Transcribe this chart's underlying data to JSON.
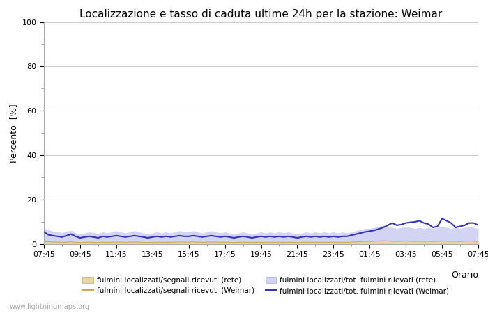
{
  "title": "Localizzazione e tasso di caduta ultime 24h per la stazione: Weimar",
  "ylabel": "Percento  [%]",
  "xlabel": "Orario",
  "ylim": [
    0,
    100
  ],
  "yticks_major": [
    0,
    20,
    40,
    60,
    80,
    100
  ],
  "yticks_minor": [
    10,
    30,
    50,
    70,
    90
  ],
  "x_labels": [
    "07:45",
    "09:45",
    "11:45",
    "13:45",
    "15:45",
    "17:45",
    "19:45",
    "21:45",
    "23:45",
    "01:45",
    "03:45",
    "05:45",
    "07:45"
  ],
  "n_points": 97,
  "background_color": "#ffffff",
  "plot_bg_color": "#ffffff",
  "grid_color": "#cccccc",
  "watermark": "www.lightningmaps.org",
  "fill_rete_color": "#e8d5a8",
  "fill_rete_alpha": 1.0,
  "fill_weimar_color": "#c8c8f0",
  "fill_weimar_alpha": 0.8,
  "line_rete_color": "#d4a840",
  "line_rete_lw": 0.8,
  "line_weimar_color": "#3333bb",
  "line_weimar_lw": 1.5,
  "legend_labels": [
    "fulmini localizzati/segnali ricevuti (rete)",
    "fulmini localizzati/segnali ricevuti (Weimar)",
    "fulmini localizzati/tot. fulmini rilevati (rete)",
    "fulmini localizzati/tot. fulmini rilevati (Weimar)"
  ],
  "rete_signals": [
    1.2,
    1.1,
    1.0,
    0.9,
    0.8,
    0.9,
    1.0,
    0.8,
    0.7,
    0.8,
    0.9,
    0.8,
    0.7,
    0.9,
    0.8,
    0.9,
    1.0,
    0.9,
    0.8,
    0.9,
    1.0,
    0.9,
    0.8,
    0.7,
    0.8,
    0.9,
    0.8,
    0.9,
    0.8,
    0.9,
    1.0,
    0.9,
    0.9,
    1.0,
    0.9,
    0.8,
    0.9,
    1.0,
    0.9,
    0.8,
    0.9,
    0.8,
    0.7,
    0.8,
    0.9,
    0.8,
    0.7,
    0.8,
    0.9,
    0.8,
    0.9,
    0.8,
    0.9,
    0.8,
    0.9,
    0.8,
    0.7,
    0.8,
    0.9,
    0.8,
    0.9,
    0.8,
    0.9,
    0.8,
    0.9,
    0.8,
    0.9,
    0.8,
    0.9,
    1.0,
    1.1,
    1.2,
    1.2,
    1.3,
    1.4,
    1.5,
    1.4,
    1.3,
    1.2,
    1.3,
    1.4,
    1.3,
    1.2,
    1.3,
    1.2,
    1.3,
    1.2,
    1.3,
    1.4,
    1.3,
    1.2,
    1.3,
    1.2,
    1.3,
    1.4,
    1.3,
    1.2
  ],
  "rete_total": [
    7.0,
    6.5,
    5.8,
    5.5,
    5.2,
    5.8,
    6.2,
    5.0,
    4.5,
    5.0,
    5.5,
    5.2,
    4.8,
    5.5,
    5.0,
    5.5,
    6.0,
    5.5,
    5.0,
    5.5,
    6.0,
    5.5,
    5.0,
    4.8,
    5.0,
    5.5,
    5.0,
    5.5,
    5.0,
    5.5,
    6.0,
    5.5,
    5.5,
    6.0,
    5.5,
    5.0,
    5.5,
    6.0,
    5.5,
    5.0,
    5.5,
    5.0,
    4.5,
    5.0,
    5.5,
    5.0,
    4.5,
    5.0,
    5.5,
    5.0,
    5.5,
    5.0,
    5.5,
    5.0,
    5.5,
    5.0,
    4.5,
    5.0,
    5.5,
    5.0,
    5.5,
    5.0,
    5.5,
    5.0,
    5.5,
    5.0,
    5.5,
    5.0,
    5.5,
    6.0,
    6.5,
    7.0,
    7.0,
    7.5,
    8.0,
    8.5,
    8.0,
    7.5,
    7.0,
    7.5,
    8.0,
    7.5,
    7.0,
    7.5,
    7.0,
    7.5,
    7.0,
    7.5,
    8.0,
    7.5,
    7.0,
    7.5,
    7.0,
    7.5,
    8.0,
    7.5,
    7.0
  ],
  "weimar_signals": [
    0.5,
    0.4,
    0.3,
    0.3,
    0.2,
    0.3,
    0.4,
    0.3,
    0.2,
    0.3,
    0.3,
    0.3,
    0.2,
    0.3,
    0.2,
    0.3,
    0.3,
    0.3,
    0.2,
    0.3,
    0.3,
    0.3,
    0.2,
    0.2,
    0.2,
    0.3,
    0.2,
    0.3,
    0.2,
    0.3,
    0.3,
    0.3,
    0.3,
    0.3,
    0.3,
    0.2,
    0.3,
    0.3,
    0.3,
    0.2,
    0.3,
    0.2,
    0.2,
    0.2,
    0.3,
    0.2,
    0.2,
    0.2,
    0.3,
    0.2,
    0.3,
    0.2,
    0.3,
    0.2,
    0.3,
    0.2,
    0.2,
    0.2,
    0.3,
    0.2,
    0.3,
    0.2,
    0.3,
    0.2,
    0.3,
    0.2,
    0.3,
    0.2,
    0.3,
    0.4,
    0.5,
    0.6,
    0.6,
    0.7,
    0.8,
    0.9,
    0.8,
    0.7,
    0.6,
    0.7,
    0.8,
    0.7,
    0.6,
    0.7,
    0.6,
    0.7,
    0.6,
    0.7,
    0.8,
    0.7,
    0.6,
    0.7,
    0.6,
    0.7,
    0.8,
    0.7,
    0.6
  ],
  "weimar_total": [
    5.5,
    4.2,
    3.8,
    3.5,
    3.2,
    3.8,
    4.5,
    3.5,
    2.8,
    3.2,
    3.5,
    3.2,
    2.8,
    3.5,
    3.2,
    3.5,
    3.8,
    3.5,
    3.2,
    3.5,
    3.8,
    3.5,
    3.2,
    2.8,
    3.2,
    3.5,
    3.2,
    3.5,
    3.2,
    3.5,
    3.8,
    3.5,
    3.5,
    3.8,
    3.5,
    3.2,
    3.5,
    3.8,
    3.5,
    3.2,
    3.5,
    3.2,
    2.8,
    3.2,
    3.5,
    3.2,
    2.8,
    3.2,
    3.5,
    3.2,
    3.5,
    3.2,
    3.5,
    3.2,
    3.5,
    3.2,
    2.8,
    3.2,
    3.5,
    3.2,
    3.5,
    3.2,
    3.5,
    3.2,
    3.5,
    3.2,
    3.5,
    3.5,
    4.0,
    4.5,
    5.0,
    5.5,
    5.8,
    6.2,
    6.8,
    7.5,
    8.5,
    9.5,
    8.5,
    8.8,
    9.5,
    9.8,
    10.0,
    10.5,
    9.5,
    9.0,
    7.5,
    8.0,
    11.5,
    10.5,
    9.5,
    7.5,
    8.0,
    8.5,
    9.5,
    9.5,
    8.5
  ]
}
